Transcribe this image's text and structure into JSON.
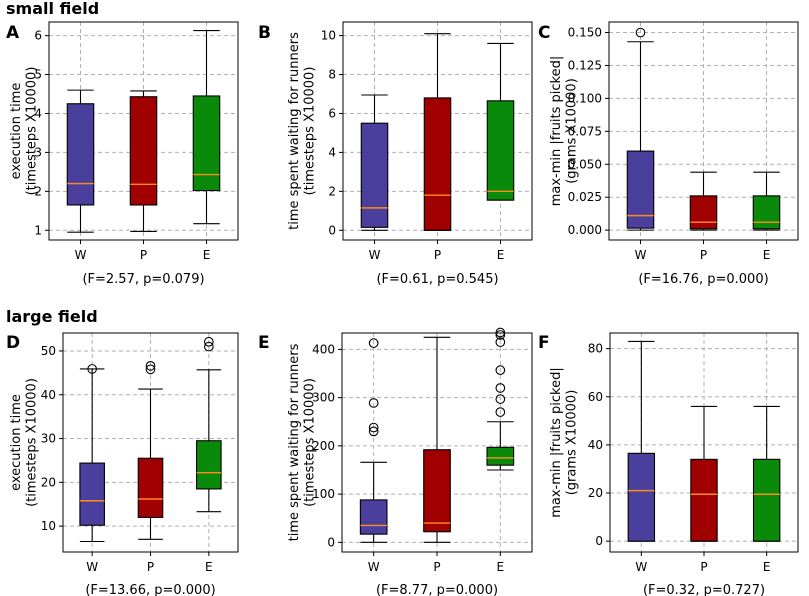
{
  "section_titles": [
    "small field",
    "large field"
  ],
  "colors": {
    "W": "#4b3f9e",
    "P": "#a00000",
    "E": "#0a8a0a",
    "median": "#ff8c1a",
    "grid": "#b0b0b0"
  },
  "chart_data": [
    {
      "type": "box",
      "panel": "A",
      "section": "small field",
      "ylabel_lines": [
        "execution time",
        "(timesteps X10000)"
      ],
      "categories": [
        "W",
        "P",
        "E"
      ],
      "ylim": [
        0.75,
        6.35
      ],
      "yticks": [
        1,
        2,
        3,
        4,
        5,
        6
      ],
      "ytick_labels": [
        "1",
        "2",
        "3",
        "4",
        "5",
        "6"
      ],
      "boxes": [
        {
          "label": "W",
          "whislo": 0.95,
          "q1": 1.65,
          "med": 2.2,
          "q3": 4.25,
          "whishi": 4.6,
          "fliers": []
        },
        {
          "label": "P",
          "whislo": 0.97,
          "q1": 1.65,
          "med": 2.18,
          "q3": 4.43,
          "whishi": 4.58,
          "fliers": []
        },
        {
          "label": "E",
          "whislo": 1.17,
          "q1": 2.02,
          "med": 2.43,
          "q3": 4.45,
          "whishi": 6.13,
          "fliers": []
        }
      ],
      "stat_text": "(F=2.57, p=0.079)"
    },
    {
      "type": "box",
      "panel": "B",
      "section": "small field",
      "ylabel_lines": [
        "time spent waiting for runners",
        "(timesteps X10000)"
      ],
      "categories": [
        "W",
        "P",
        "E"
      ],
      "ylim": [
        -0.5,
        10.7
      ],
      "yticks": [
        0,
        2,
        4,
        6,
        8,
        10
      ],
      "ytick_labels": [
        "0",
        "2",
        "4",
        "6",
        "8",
        "10"
      ],
      "boxes": [
        {
          "label": "W",
          "whislo": 0.0,
          "q1": 0.15,
          "med": 1.15,
          "q3": 5.5,
          "whishi": 6.95,
          "fliers": []
        },
        {
          "label": "P",
          "whislo": 0.0,
          "q1": 0.0,
          "med": 1.8,
          "q3": 6.8,
          "whishi": 10.1,
          "fliers": []
        },
        {
          "label": "E",
          "whislo": 1.55,
          "q1": 1.55,
          "med": 2.0,
          "q3": 6.65,
          "whishi": 9.6,
          "fliers": []
        }
      ],
      "stat_text": "(F=0.61, p=0.545)"
    },
    {
      "type": "box",
      "panel": "C",
      "section": "small field",
      "ylabel_lines": [
        "max-min |fruits picked|",
        "(grams X10000)"
      ],
      "categories": [
        "W",
        "P",
        "E"
      ],
      "ylim": [
        -0.0075,
        0.158
      ],
      "yticks": [
        0,
        0.025,
        0.05,
        0.075,
        0.1,
        0.125,
        0.15
      ],
      "ytick_labels": [
        "0.000",
        "0.025",
        "0.050",
        "0.075",
        "0.100",
        "0.125",
        "0.150"
      ],
      "boxes": [
        {
          "label": "W",
          "whislo": 0.0,
          "q1": 0.0015,
          "med": 0.011,
          "q3": 0.06,
          "whishi": 0.143,
          "fliers": [
            0.15
          ]
        },
        {
          "label": "P",
          "whislo": 0.0,
          "q1": 0.001,
          "med": 0.006,
          "q3": 0.026,
          "whishi": 0.044,
          "fliers": []
        },
        {
          "label": "E",
          "whislo": 0.0,
          "q1": 0.001,
          "med": 0.006,
          "q3": 0.026,
          "whishi": 0.044,
          "fliers": []
        }
      ],
      "stat_text": "(F=16.76, p=0.000)"
    },
    {
      "type": "box",
      "panel": "D",
      "section": "large field",
      "ylabel_lines": [
        "execution time",
        "(timesteps X10000)"
      ],
      "categories": [
        "W",
        "P",
        "E"
      ],
      "ylim": [
        4.1,
        54.1
      ],
      "yticks": [
        10,
        20,
        30,
        40,
        50
      ],
      "ytick_labels": [
        "10",
        "20",
        "30",
        "40",
        "50"
      ],
      "boxes": [
        {
          "label": "W",
          "whislo": 6.5,
          "q1": 10.2,
          "med": 15.8,
          "q3": 24.4,
          "whishi": 45.9,
          "fliers": [
            45.9
          ]
        },
        {
          "label": "P",
          "whislo": 7.0,
          "q1": 12.0,
          "med": 16.2,
          "q3": 25.5,
          "whishi": 41.3,
          "fliers": [
            45.8,
            46.6
          ]
        },
        {
          "label": "E",
          "whislo": 13.3,
          "q1": 18.5,
          "med": 22.2,
          "q3": 29.5,
          "whishi": 45.7,
          "fliers": [
            51.0,
            52.1
          ]
        }
      ],
      "stat_text": "(F=13.66, p=0.000)"
    },
    {
      "type": "box",
      "panel": "E",
      "section": "large field",
      "ylabel_lines": [
        "time spent waiting for runners",
        "(timesteps X10000)"
      ],
      "categories": [
        "W",
        "P",
        "E"
      ],
      "ylim": [
        -20,
        434
      ],
      "yticks": [
        0,
        100,
        200,
        300,
        400
      ],
      "ytick_labels": [
        "0",
        "100",
        "200",
        "300",
        "400"
      ],
      "boxes": [
        {
          "label": "W",
          "whislo": 0,
          "q1": 17,
          "med": 35,
          "q3": 88,
          "whishi": 166,
          "fliers": [
            230,
            238,
            289,
            413
          ]
        },
        {
          "label": "P",
          "whislo": 0,
          "q1": 22,
          "med": 40,
          "q3": 192,
          "whishi": 425,
          "fliers": []
        },
        {
          "label": "E",
          "whislo": 150,
          "q1": 160,
          "med": 175,
          "q3": 197,
          "whishi": 250,
          "fliers": [
            270,
            297,
            320,
            357,
            415,
            430,
            435
          ]
        }
      ],
      "stat_text": "(F=8.77, p=0.000)"
    },
    {
      "type": "box",
      "panel": "F",
      "section": "large field",
      "ylabel_lines": [
        "max-min |fruits picked|",
        "(grams X10000)"
      ],
      "categories": [
        "W",
        "P",
        "E"
      ],
      "ylim": [
        -4.5,
        86.5
      ],
      "yticks": [
        0,
        20,
        40,
        60,
        80
      ],
      "ytick_labels": [
        "0",
        "20",
        "40",
        "60",
        "80"
      ],
      "boxes": [
        {
          "label": "W",
          "whislo": 0,
          "q1": 0,
          "med": 21,
          "q3": 36.5,
          "whishi": 83,
          "fliers": []
        },
        {
          "label": "P",
          "whislo": 0,
          "q1": 0,
          "med": 19.5,
          "q3": 34,
          "whishi": 56,
          "fliers": []
        },
        {
          "label": "E",
          "whislo": 0,
          "q1": 0,
          "med": 19.5,
          "q3": 34,
          "whishi": 56,
          "fliers": []
        }
      ],
      "stat_text": "(F=0.32, p=0.727)"
    }
  ]
}
